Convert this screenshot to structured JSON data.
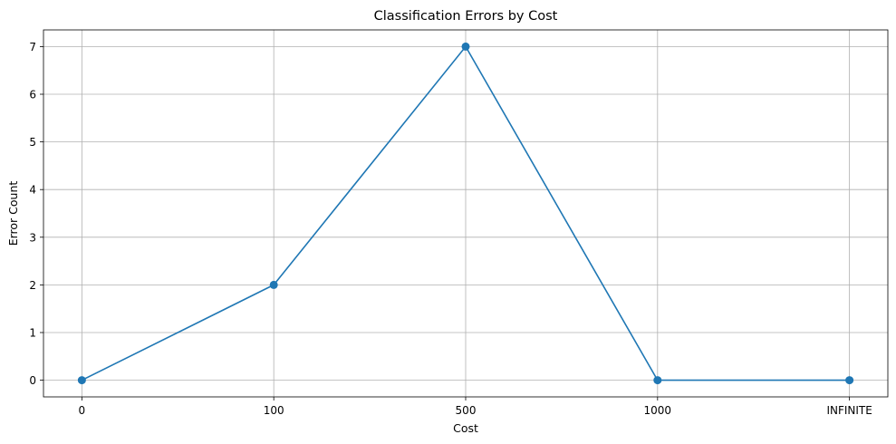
{
  "chart_data": {
    "type": "line",
    "title": "Classification Errors by Cost",
    "xlabel": "Cost",
    "ylabel": "Error Count",
    "categories": [
      "0",
      "100",
      "500",
      "1000",
      "INFINITE"
    ],
    "series": [
      {
        "values": [
          0,
          2,
          7,
          0,
          0
        ],
        "color": "#1f77b4",
        "marker": "circle"
      }
    ],
    "ylim": [
      -0.35,
      7.35
    ],
    "yticks": [
      0,
      1,
      2,
      3,
      4,
      5,
      6,
      7
    ],
    "grid": true
  }
}
